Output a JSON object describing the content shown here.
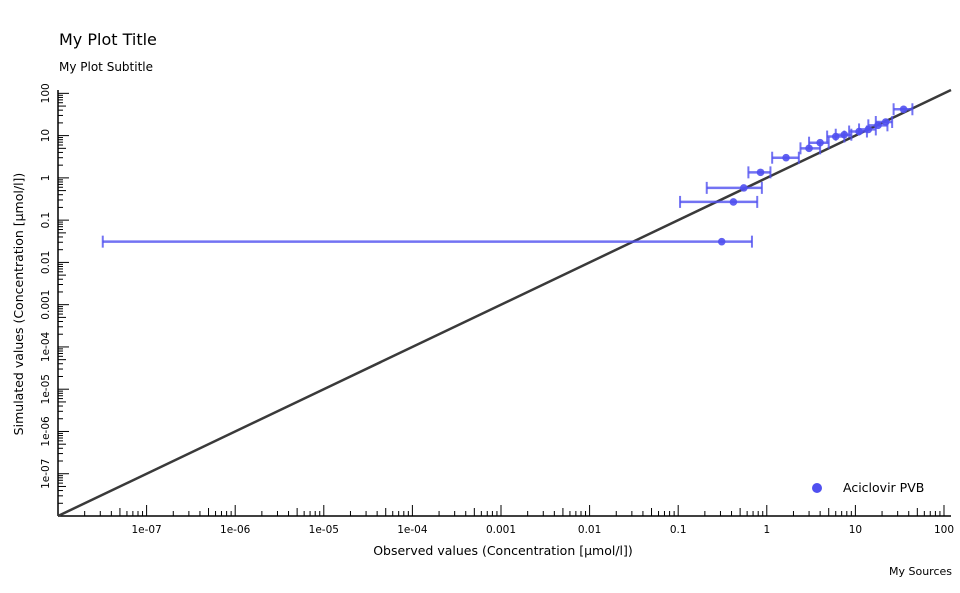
{
  "chart_data": {
    "type": "scatter",
    "title": "My Plot Title",
    "subtitle": "My Plot Subtitle",
    "xlabel": "Observed values (Concentration [µmol/l])",
    "ylabel": "Simulated values (Concentration [µmol/l])",
    "caption": "My Sources",
    "x_scale": "log",
    "y_scale": "log",
    "xlim": [
      1e-08,
      120
    ],
    "ylim": [
      1e-08,
      120
    ],
    "x_ticks": [
      1e-07,
      1e-06,
      1e-05,
      0.0001,
      0.001,
      0.01,
      0.1,
      1,
      10,
      100
    ],
    "x_tick_labels": [
      "1e-07",
      "1e-06",
      "1e-05",
      "1e-04",
      "0.001",
      "0.01",
      "0.1",
      "1",
      "10",
      "100"
    ],
    "y_ticks": [
      1e-07,
      1e-06,
      1e-05,
      0.0001,
      0.001,
      0.01,
      0.1,
      1,
      10,
      100
    ],
    "y_tick_labels": [
      "1e-07",
      "1e-06",
      "1e-05",
      "1e-04",
      "0.001",
      "0.01",
      "0.1",
      "1",
      "10",
      "100"
    ],
    "identity_line": true,
    "grid": false,
    "legend_position": "bottom-right",
    "series": [
      {
        "name": "Aciclovir PVB",
        "color": "#5050f0",
        "points": [
          {
            "x": 0.31,
            "y": 0.031,
            "xmin": 3.2e-08,
            "xmax": 0.68
          },
          {
            "x": 0.42,
            "y": 0.27,
            "xmin": 0.105,
            "xmax": 0.78
          },
          {
            "x": 0.55,
            "y": 0.58,
            "xmin": 0.21,
            "xmax": 0.88
          },
          {
            "x": 0.85,
            "y": 1.35,
            "xmin": 0.62,
            "xmax": 1.1
          },
          {
            "x": 1.65,
            "y": 3.0,
            "xmin": 1.15,
            "xmax": 2.3
          },
          {
            "x": 3.0,
            "y": 5.0,
            "xmin": 2.4,
            "xmax": 4.0
          },
          {
            "x": 4.0,
            "y": 6.8,
            "xmin": 3.0,
            "xmax": 5.0
          },
          {
            "x": 6.0,
            "y": 9.5,
            "xmin": 4.8,
            "xmax": 7.5
          },
          {
            "x": 7.5,
            "y": 10.5,
            "xmin": 6.0,
            "xmax": 9.0
          },
          {
            "x": 11.0,
            "y": 12.5,
            "xmin": 8.5,
            "xmax": 13.5
          },
          {
            "x": 14.0,
            "y": 14.0,
            "xmin": 11.0,
            "xmax": 17.0
          },
          {
            "x": 18.0,
            "y": 17.5,
            "xmin": 14.0,
            "xmax": 23.0
          },
          {
            "x": 22.0,
            "y": 21.0,
            "xmin": 17.0,
            "xmax": 26.0
          },
          {
            "x": 35.0,
            "y": 42.0,
            "xmin": 27.0,
            "xmax": 44.0
          }
        ]
      }
    ]
  }
}
